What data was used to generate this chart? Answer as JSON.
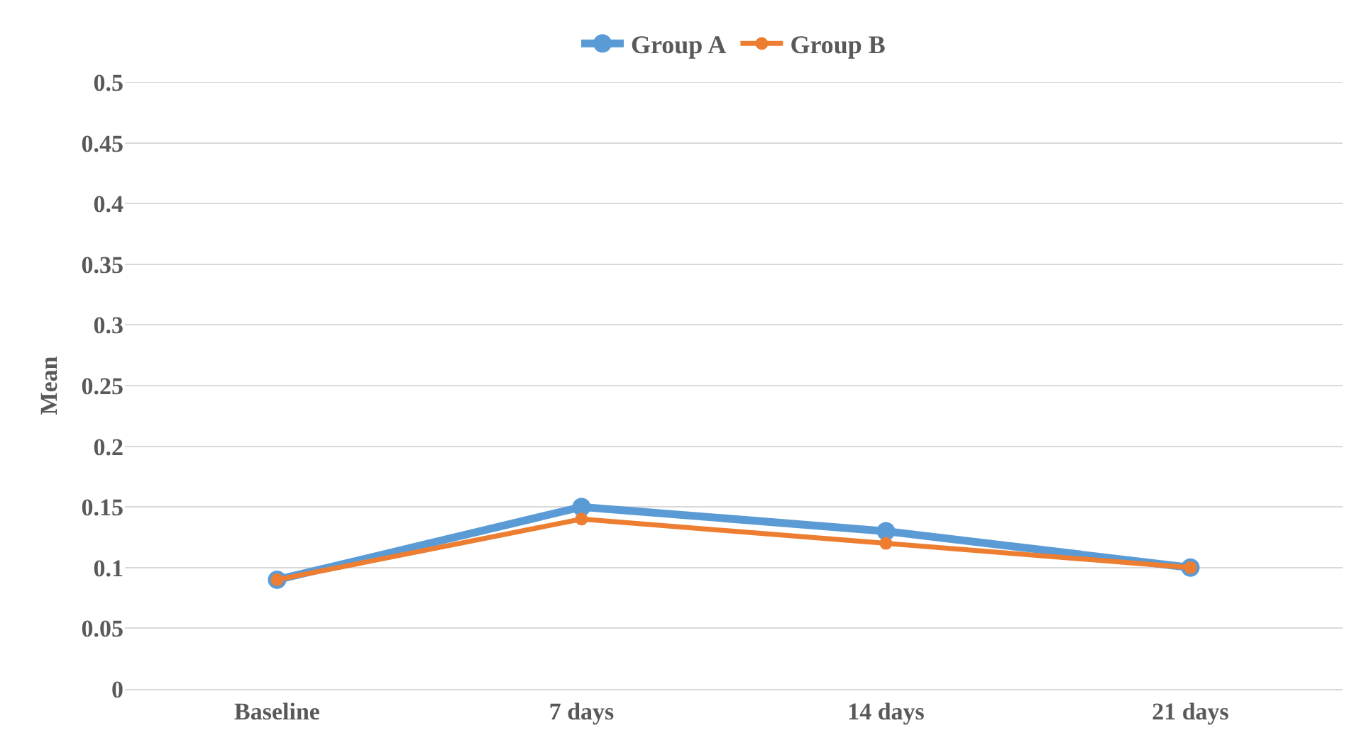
{
  "chart_data": {
    "type": "line",
    "ylabel": "Mean",
    "categories": [
      "Baseline",
      "7 days",
      "14 days",
      "21 days"
    ],
    "series": [
      {
        "name": "Group A",
        "color": "#5b9bd5",
        "values": [
          0.09,
          0.15,
          0.13,
          0.1
        ]
      },
      {
        "name": "Group B",
        "color": "#ed7d31",
        "values": [
          0.09,
          0.14,
          0.12,
          0.1
        ]
      }
    ],
    "ylim": [
      0,
      0.5
    ],
    "yticks": [
      0,
      0.05,
      0.1,
      0.15,
      0.2,
      0.25,
      0.3,
      0.35,
      0.4,
      0.45,
      0.5
    ],
    "grid": "y",
    "legend": "top",
    "marker": "circle",
    "line_style": "solid"
  }
}
